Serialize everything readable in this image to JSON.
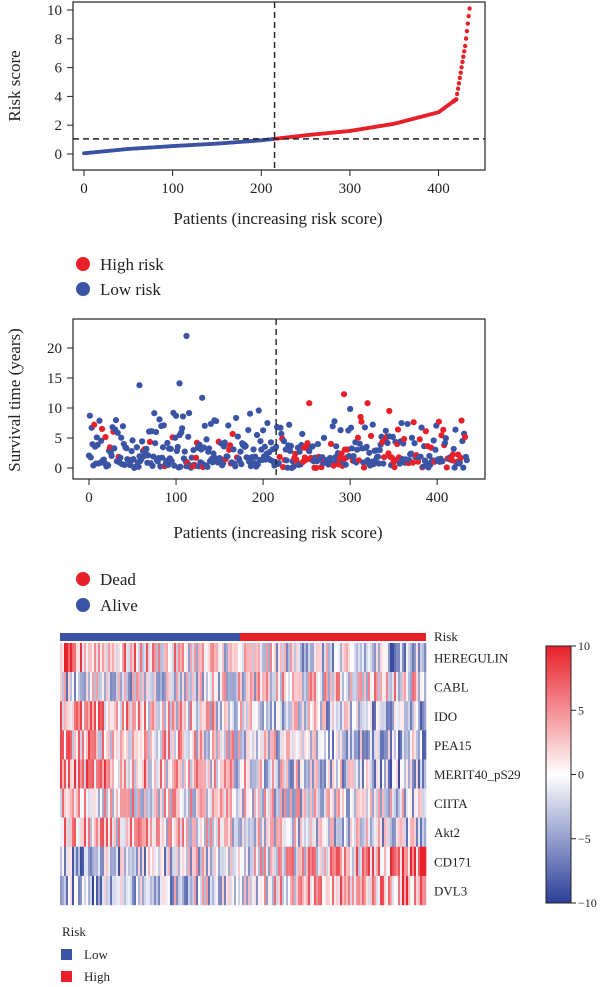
{
  "colors": {
    "high": "#e8202a",
    "low": "#3a53a4",
    "dead": "#e8202a",
    "alive": "#3a53a4"
  },
  "chart_data": [
    {
      "type": "scatter",
      "name": "risk-score-plot",
      "ylabel": "Risk score",
      "xlabel": "Patients (increasing risk score)",
      "xlim": [
        0,
        440
      ],
      "ylim": [
        0,
        10
      ],
      "xticks": [
        0,
        100,
        200,
        300,
        400
      ],
      "yticks": [
        0,
        2,
        4,
        6,
        8,
        10
      ],
      "cutoff_patient": 215,
      "cutoff_score": 1.05,
      "n_patients": 435,
      "sample_patients": [
        0,
        50,
        100,
        150,
        200,
        215,
        250,
        300,
        350,
        400,
        420,
        430,
        435
      ],
      "sample_scores": [
        0.05,
        0.35,
        0.55,
        0.72,
        0.95,
        1.05,
        1.3,
        1.6,
        2.1,
        2.9,
        3.8,
        7.5,
        10.1
      ],
      "legend": {
        "high_label": "High risk",
        "low_label": "Low risk"
      }
    },
    {
      "type": "scatter",
      "name": "survival-time-plot",
      "ylabel": "Survival time (years)",
      "xlabel": "Patients (increasing risk score)",
      "xlim": [
        0,
        440
      ],
      "ylim": [
        0,
        23
      ],
      "xticks": [
        0,
        100,
        200,
        300,
        400
      ],
      "yticks": [
        0,
        5,
        10,
        15,
        20
      ],
      "cutoff_patient": 215,
      "highlight_points": [
        {
          "x": 112,
          "y": 22.0,
          "status": "alive"
        },
        {
          "x": 58,
          "y": 13.8,
          "status": "alive"
        },
        {
          "x": 104,
          "y": 14.1,
          "status": "alive"
        },
        {
          "x": 293,
          "y": 12.3,
          "status": "dead"
        },
        {
          "x": 320,
          "y": 10.8,
          "status": "dead"
        },
        {
          "x": 253,
          "y": 10.8,
          "status": "dead"
        },
        {
          "x": 130,
          "y": 11.7,
          "status": "alive"
        },
        {
          "x": 345,
          "y": 9.5,
          "status": "dead"
        }
      ],
      "legend": {
        "dead_label": "Dead",
        "alive_label": "Alive"
      }
    },
    {
      "type": "heatmap",
      "name": "expression-heatmap",
      "rows": [
        "HEREGULIN",
        "CABL",
        "IDO",
        "PEA15",
        "MERIT40_pS29",
        "CIITA",
        "Akt2",
        "CD171",
        "DVL3"
      ],
      "risk_track_label": "Risk",
      "colorbar": {
        "min": -10,
        "max": 10,
        "ticks": [
          "10",
          "5",
          "0",
          "−5",
          "−10"
        ]
      },
      "legend": {
        "title": "Risk",
        "low_label": "Low",
        "high_label": "High"
      }
    }
  ]
}
